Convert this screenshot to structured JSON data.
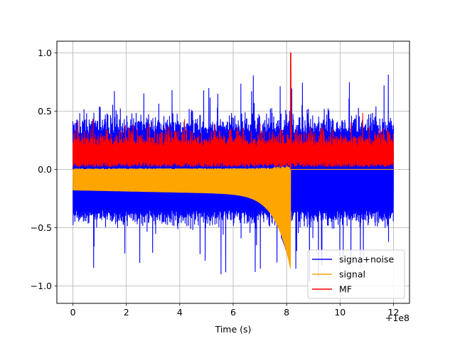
{
  "chart_data": {
    "type": "line",
    "title": "",
    "xlabel": "Time (s)",
    "ylabel": "",
    "x_offset_label": "+1e8",
    "xlim": [
      -0.6,
      12.6
    ],
    "ylim": [
      -1.15,
      1.1
    ],
    "x_ticks": [
      0,
      2,
      4,
      6,
      8,
      10,
      12
    ],
    "x_tick_labels": [
      "0",
      "2",
      "4",
      "6",
      "8",
      "10",
      "12"
    ],
    "y_ticks": [
      -1.0,
      -0.5,
      0.0,
      0.5,
      1.0
    ],
    "y_tick_labels": [
      "−1.0",
      "−0.5",
      "0.0",
      "0.5",
      "1.0"
    ],
    "grid": true,
    "legend_position": "lower-right",
    "series": [
      {
        "name": "signa+noise",
        "color": "#0000ff",
        "description_values": {
          "x_range": [
            0,
            12
          ],
          "upper_envelope_typical": 0.5,
          "lower_envelope_typical": -0.45,
          "max": 1.0,
          "min": -1.06
        }
      },
      {
        "name": "signal",
        "color": "#ffa500",
        "description_values": {
          "x_range": [
            0,
            8.2
          ],
          "chirp_end": 8.15,
          "amplitude_start": 0.18,
          "amplitude_end": 0.82
        }
      },
      {
        "name": "MF",
        "color": "#ff0000",
        "description_values": {
          "x_range": [
            0,
            12
          ],
          "baseline_typical": 0.12,
          "peak_x": 8.15,
          "peak_y": 1.0
        }
      }
    ]
  }
}
